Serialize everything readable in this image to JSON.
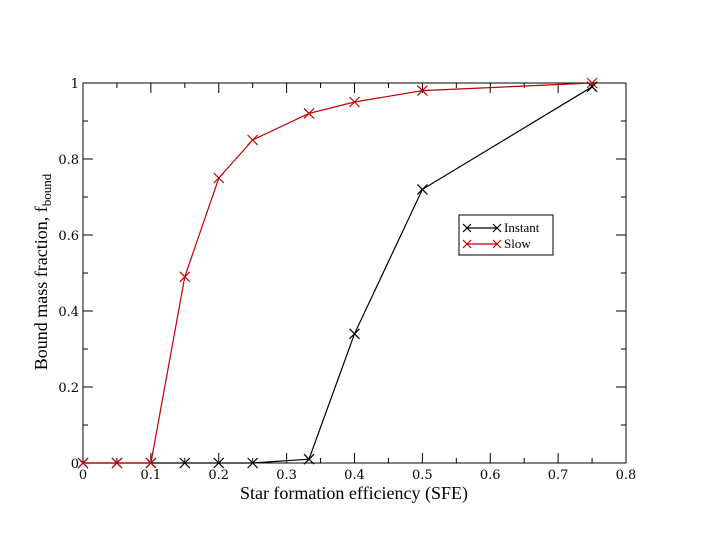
{
  "chart_data": {
    "type": "line",
    "title": "",
    "xlabel": "Star formation efficiency (SFE)",
    "ylabel_main": "Bound mass fraction, f",
    "ylabel_sub": "bound",
    "xlim": [
      0,
      0.8
    ],
    "ylim": [
      0,
      1
    ],
    "x_ticks": [
      "0",
      "0.1",
      "0.2",
      "0.3",
      "0.4",
      "0.5",
      "0.6",
      "0.7",
      "0.8"
    ],
    "y_ticks": [
      "0",
      "0.2",
      "0.4",
      "0.6",
      "0.8",
      "1"
    ],
    "grid": false,
    "legend_position": "right-center",
    "series": [
      {
        "name": "Instant",
        "color": "#000000",
        "marker": "x",
        "x": [
          0,
          0.05,
          0.1,
          0.15,
          0.2,
          0.25,
          0.333,
          0.4,
          0.5,
          0.75
        ],
        "y": [
          0,
          0,
          0,
          0,
          0,
          0,
          0.01,
          0.34,
          0.72,
          0.99
        ]
      },
      {
        "name": "Slow",
        "color": "#c00000",
        "marker": "x",
        "x": [
          0,
          0.05,
          0.1,
          0.15,
          0.2,
          0.25,
          0.333,
          0.4,
          0.5,
          0.75
        ],
        "y": [
          0,
          0,
          0,
          0.49,
          0.75,
          0.85,
          0.92,
          0.95,
          0.98,
          1.0
        ]
      }
    ]
  }
}
